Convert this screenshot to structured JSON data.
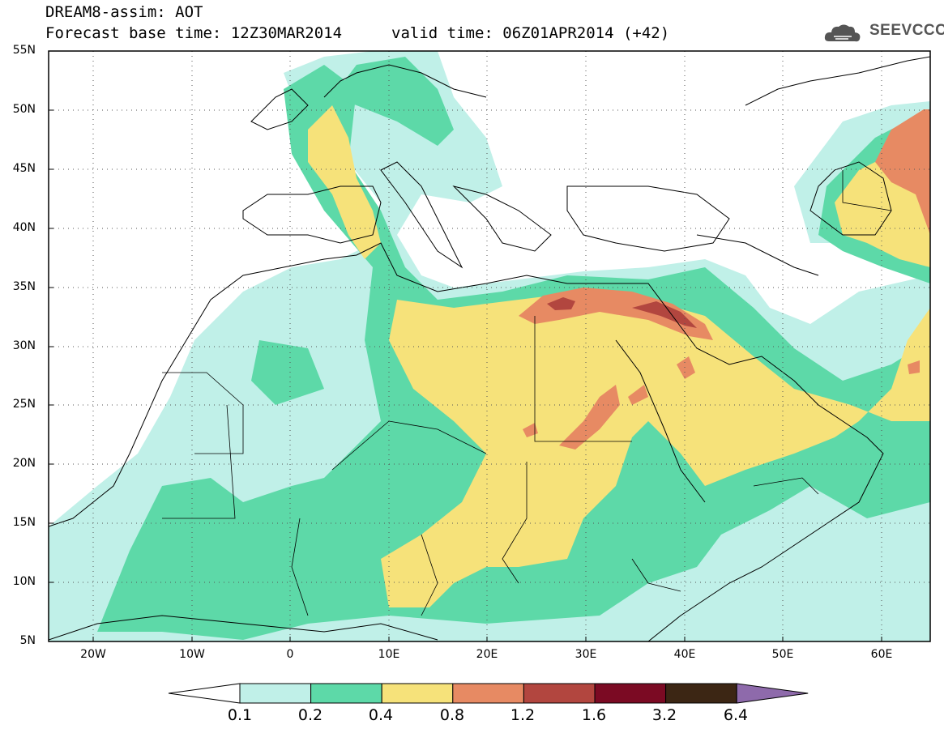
{
  "title": {
    "line1": "DREAM8-assim: AOT",
    "line2": "Forecast base time: 12Z30MAR2014",
    "valid": "valid time: 06Z01APR2014 (+42)"
  },
  "logo": {
    "text": "SEEVCCC",
    "icon": "cloud-icon"
  },
  "map": {
    "variable": "AOT",
    "lon_range": [
      -25,
      65
    ],
    "lat_range": [
      5,
      55
    ],
    "y_ticks": [
      "5N",
      "10N",
      "15N",
      "20N",
      "25N",
      "30N",
      "35N",
      "40N",
      "45N",
      "50N",
      "55N"
    ],
    "x_ticks": [
      "20W",
      "10W",
      "0",
      "10E",
      "20E",
      "30E",
      "40E",
      "50E",
      "60E"
    ],
    "grid": "dotted"
  },
  "colorbar": {
    "labels": [
      "0.1",
      "0.2",
      "0.4",
      "0.8",
      "1.2",
      "1.6",
      "3.2",
      "6.4"
    ],
    "colors": [
      "#ffffff",
      "#c0f0e8",
      "#5dd9a8",
      "#f6e27a",
      "#e78a63",
      "#b2463f",
      "#7b0a23",
      "#3c2614",
      "#8e6aab"
    ]
  }
}
